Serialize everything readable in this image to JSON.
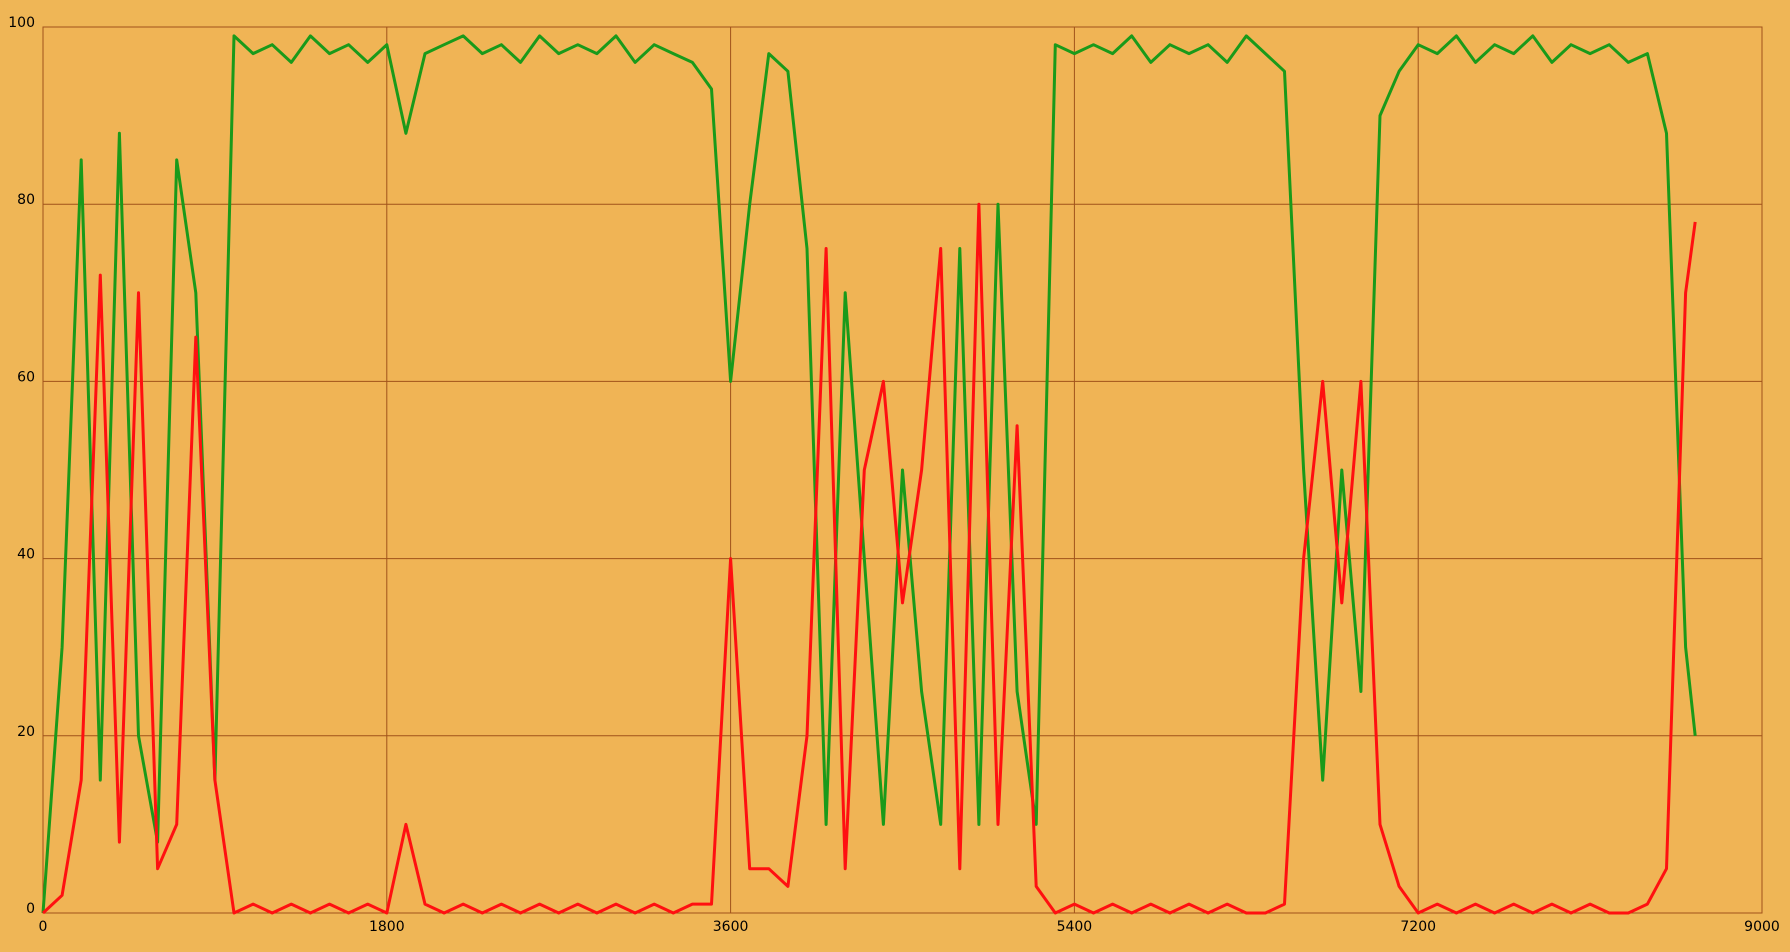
{
  "chart_data": {
    "type": "line",
    "x": [
      0,
      100,
      200,
      300,
      400,
      500,
      600,
      700,
      800,
      900,
      1000,
      1100,
      1200,
      1300,
      1400,
      1500,
      1600,
      1700,
      1800,
      1900,
      2000,
      2100,
      2200,
      2300,
      2400,
      2500,
      2600,
      2700,
      2800,
      2900,
      3000,
      3100,
      3200,
      3300,
      3400,
      3500,
      3600,
      3700,
      3800,
      3900,
      4000,
      4100,
      4200,
      4300,
      4400,
      4500,
      4600,
      4700,
      4800,
      4900,
      5000,
      5100,
      5200,
      5300,
      5400,
      5500,
      5600,
      5700,
      5800,
      5900,
      6000,
      6100,
      6200,
      6300,
      6400,
      6500,
      6600,
      6700,
      6800,
      6900,
      7000,
      7100,
      7200,
      7300,
      7400,
      7500,
      7600,
      7700,
      7800,
      7900,
      8000,
      8100,
      8200,
      8300,
      8400,
      8500,
      8600,
      8650
    ],
    "series": [
      {
        "color": "#1a9a1a",
        "values": [
          0,
          30,
          85,
          15,
          88,
          20,
          8,
          85,
          70,
          15,
          99,
          97,
          98,
          96,
          99,
          97,
          98,
          96,
          98,
          88,
          97,
          98,
          99,
          97,
          98,
          96,
          99,
          97,
          98,
          97,
          99,
          96,
          98,
          97,
          96,
          93,
          60,
          80,
          97,
          95,
          75,
          10,
          70,
          40,
          10,
          50,
          25,
          10,
          75,
          10,
          80,
          25,
          10,
          98,
          97,
          98,
          97,
          99,
          96,
          98,
          97,
          98,
          96,
          99,
          97,
          95,
          50,
          15,
          50,
          25,
          90,
          95,
          98,
          97,
          99,
          96,
          98,
          97,
          99,
          96,
          98,
          97,
          98,
          96,
          97,
          88,
          30,
          20
        ]
      },
      {
        "color": "#ff1010",
        "values": [
          0,
          2,
          15,
          72,
          8,
          70,
          5,
          10,
          65,
          15,
          0,
          1,
          0,
          1,
          0,
          1,
          0,
          1,
          0,
          10,
          1,
          0,
          1,
          0,
          1,
          0,
          1,
          0,
          1,
          0,
          1,
          0,
          1,
          0,
          1,
          1,
          40,
          5,
          5,
          3,
          20,
          75,
          5,
          50,
          60,
          35,
          50,
          75,
          5,
          80,
          10,
          55,
          3,
          0,
          1,
          0,
          1,
          0,
          1,
          0,
          1,
          0,
          1,
          0,
          0,
          1,
          40,
          60,
          35,
          60,
          10,
          3,
          0,
          1,
          0,
          1,
          0,
          1,
          0,
          1,
          0,
          1,
          0,
          0,
          1,
          5,
          70,
          78
        ]
      }
    ],
    "xlim": [
      0,
      9000
    ],
    "xticks": [
      0,
      1800,
      3600,
      5400,
      7200,
      9000
    ],
    "ylim": [
      0,
      100
    ],
    "yticks": [
      0,
      20,
      40,
      60,
      80,
      100
    ],
    "grid": true
  }
}
